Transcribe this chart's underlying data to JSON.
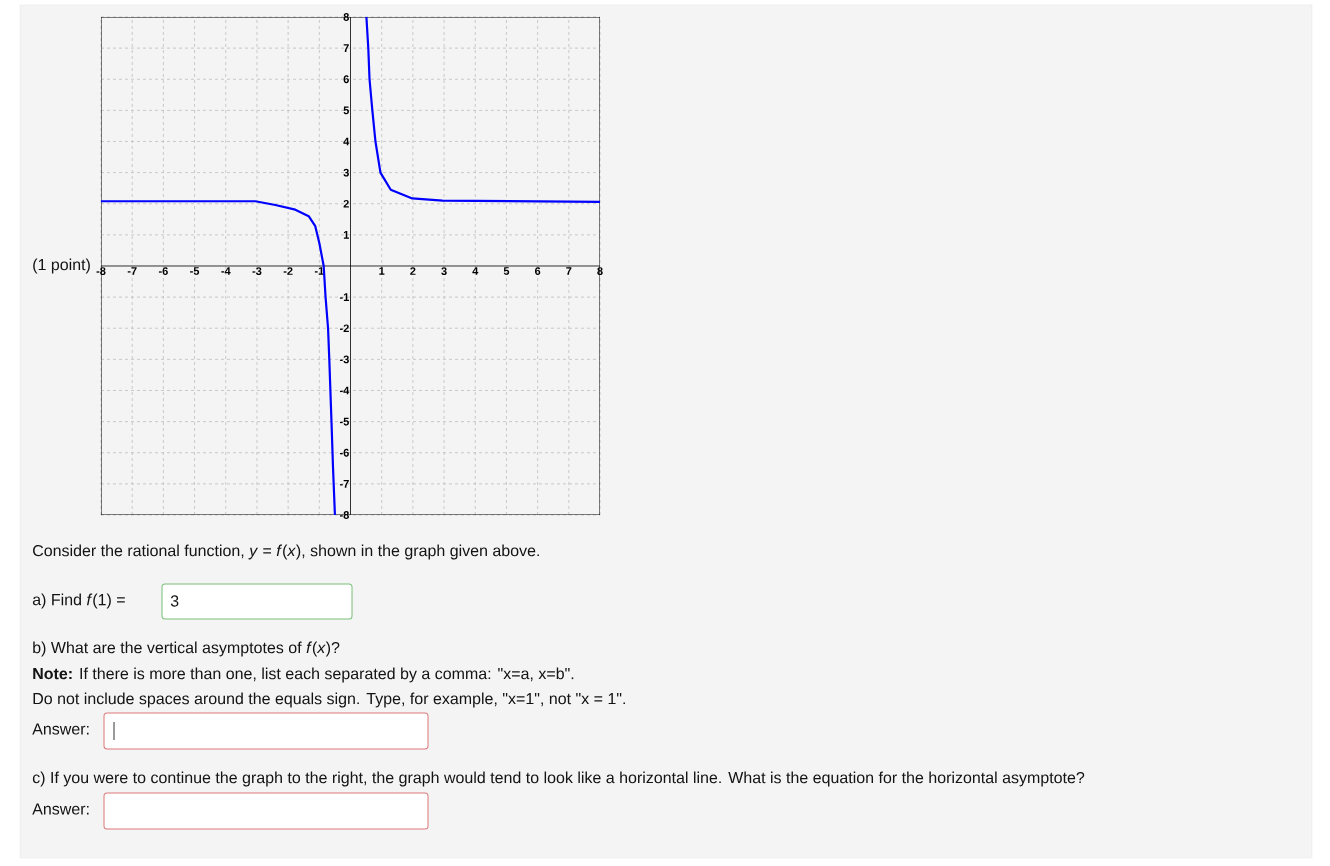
{
  "chart_data": {
    "type": "line",
    "xlim": [
      -8,
      8
    ],
    "ylim": [
      -8,
      8
    ],
    "xticks": [
      -8,
      -7,
      -6,
      -5,
      -4,
      -3,
      -2,
      -1,
      1,
      2,
      3,
      4,
      5,
      6,
      7,
      8
    ],
    "yticks": [
      -8,
      -7,
      -6,
      -5,
      -4,
      -3,
      -2,
      -1,
      1,
      2,
      3,
      4,
      5,
      6,
      7,
      8
    ],
    "grid": true,
    "marker": "none",
    "line_style": "solid",
    "series": [
      {
        "color": "#0000ff",
        "x": [
          -8,
          -3.05,
          -2.41,
          -1.77,
          -1.34,
          -1.13,
          -1.0,
          -0.86,
          -0.8,
          -0.72,
          -0.68,
          -0.61,
          -0.56,
          -0.5
        ],
        "values": [
          2.08,
          2.08,
          1.96,
          1.81,
          1.6,
          1.28,
          0.74,
          0,
          -1,
          -2,
          -3,
          -5,
          -6.5,
          -8
        ]
      },
      {
        "color": "#0000ff",
        "x": [
          0.51,
          0.57,
          0.61,
          0.7,
          0.8,
          0.96,
          1.29,
          1.98,
          2.95,
          8
        ],
        "values": [
          8,
          7,
          6,
          5,
          4,
          3,
          2.45,
          2.17,
          2.1,
          2.06
        ]
      }
    ],
    "annotations": [
      "(1 point)",
      "Consider the rational function, *y* = *f*(*x*), shown in the graph given above.",
      "a) Find *f*(1) =",
      "3",
      "b) What are the vertical asymptotes of *f*(*x*)?",
      "**Note:** If there is more than one, list each separated by a comma: \"x=a, x=b\".",
      "Do not include spaces around the equals sign. Type, for example, \"x=1\", not \"x = 1\".",
      "Answer:",
      "c) If you were to continue the graph to the right, the graph would tend to look like a horizontal line. What is the equation for the horizontal asymptote?",
      "Answer:"
    ]
  }
}
